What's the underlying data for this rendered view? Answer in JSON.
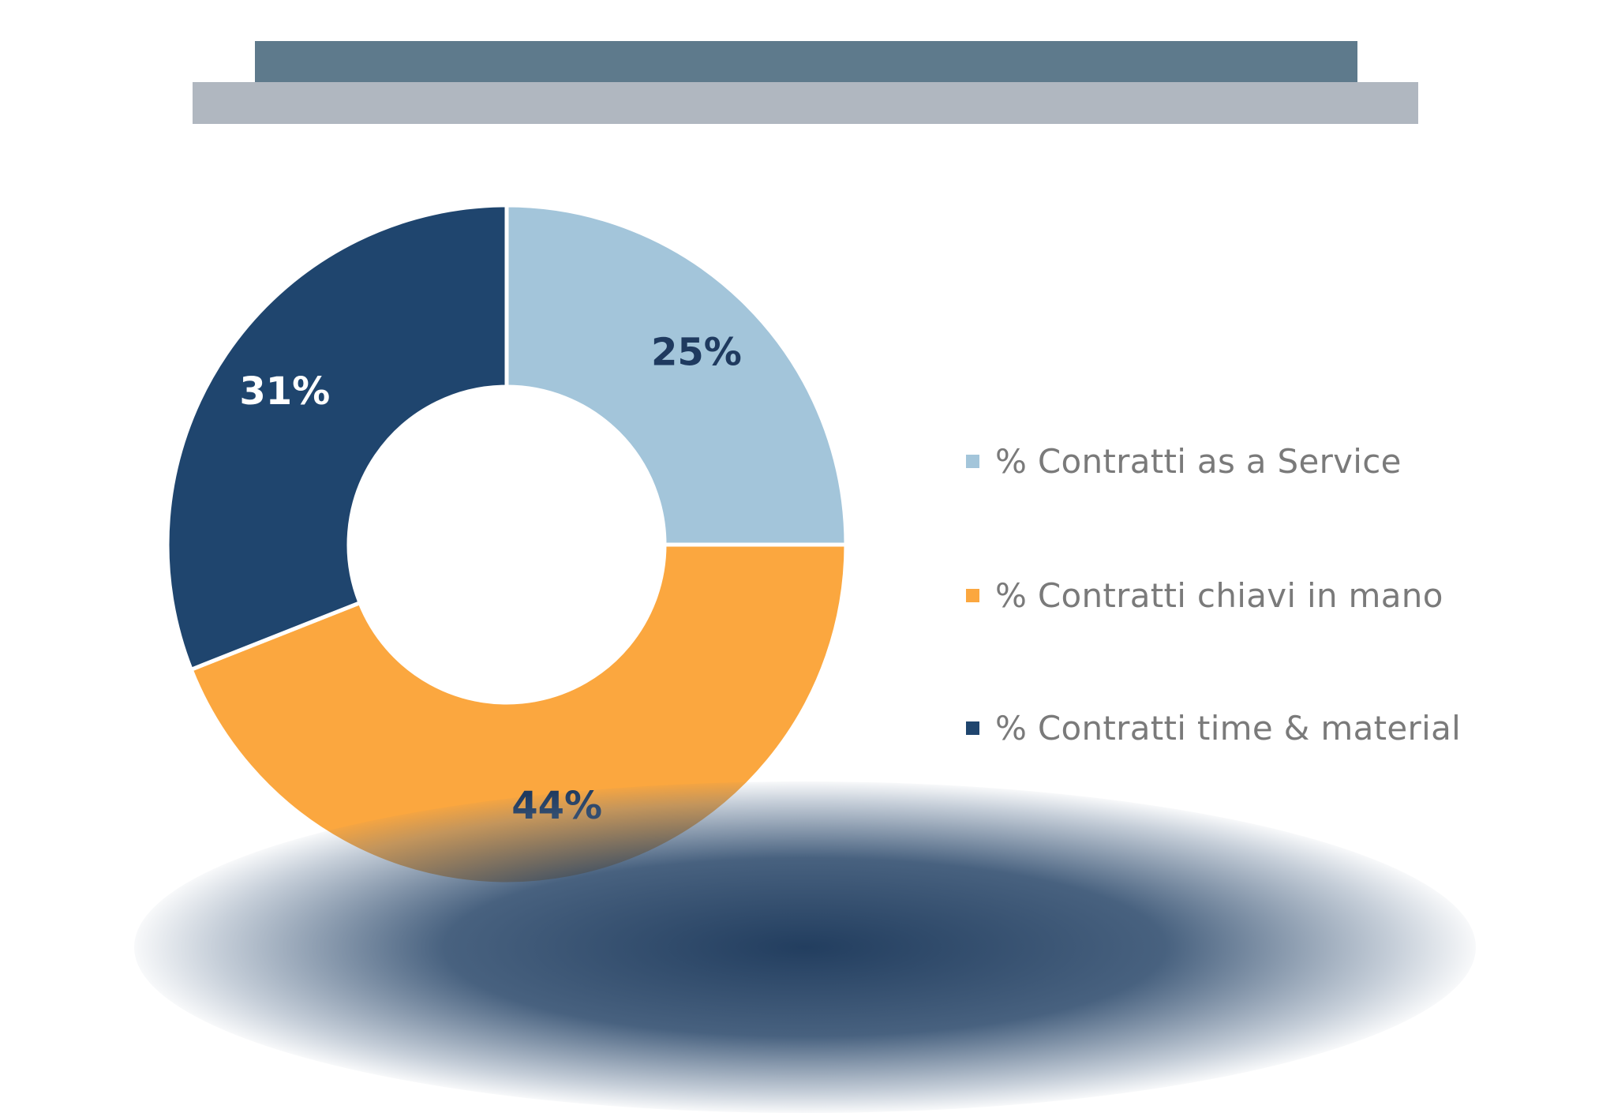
{
  "colors": {
    "header_dark": "#5e7a8c",
    "header_light": "#b0b7c0",
    "label_dark_text": "#1f3a5f",
    "label_light_text": "#ffffff"
  },
  "chart_data": {
    "type": "pie",
    "variant": "donut",
    "title": "",
    "legend_position": "right",
    "slices": [
      {
        "label": "% Contratti as a Service",
        "value": 25,
        "display": "25%",
        "color": "#a3c5da"
      },
      {
        "label": "% Contratti chiavi in mano",
        "value": 44,
        "display": "44%",
        "color": "#fba73f"
      },
      {
        "label": "% Contratti time & material",
        "value": 31,
        "display": "31%",
        "color": "#1f456e"
      }
    ]
  }
}
